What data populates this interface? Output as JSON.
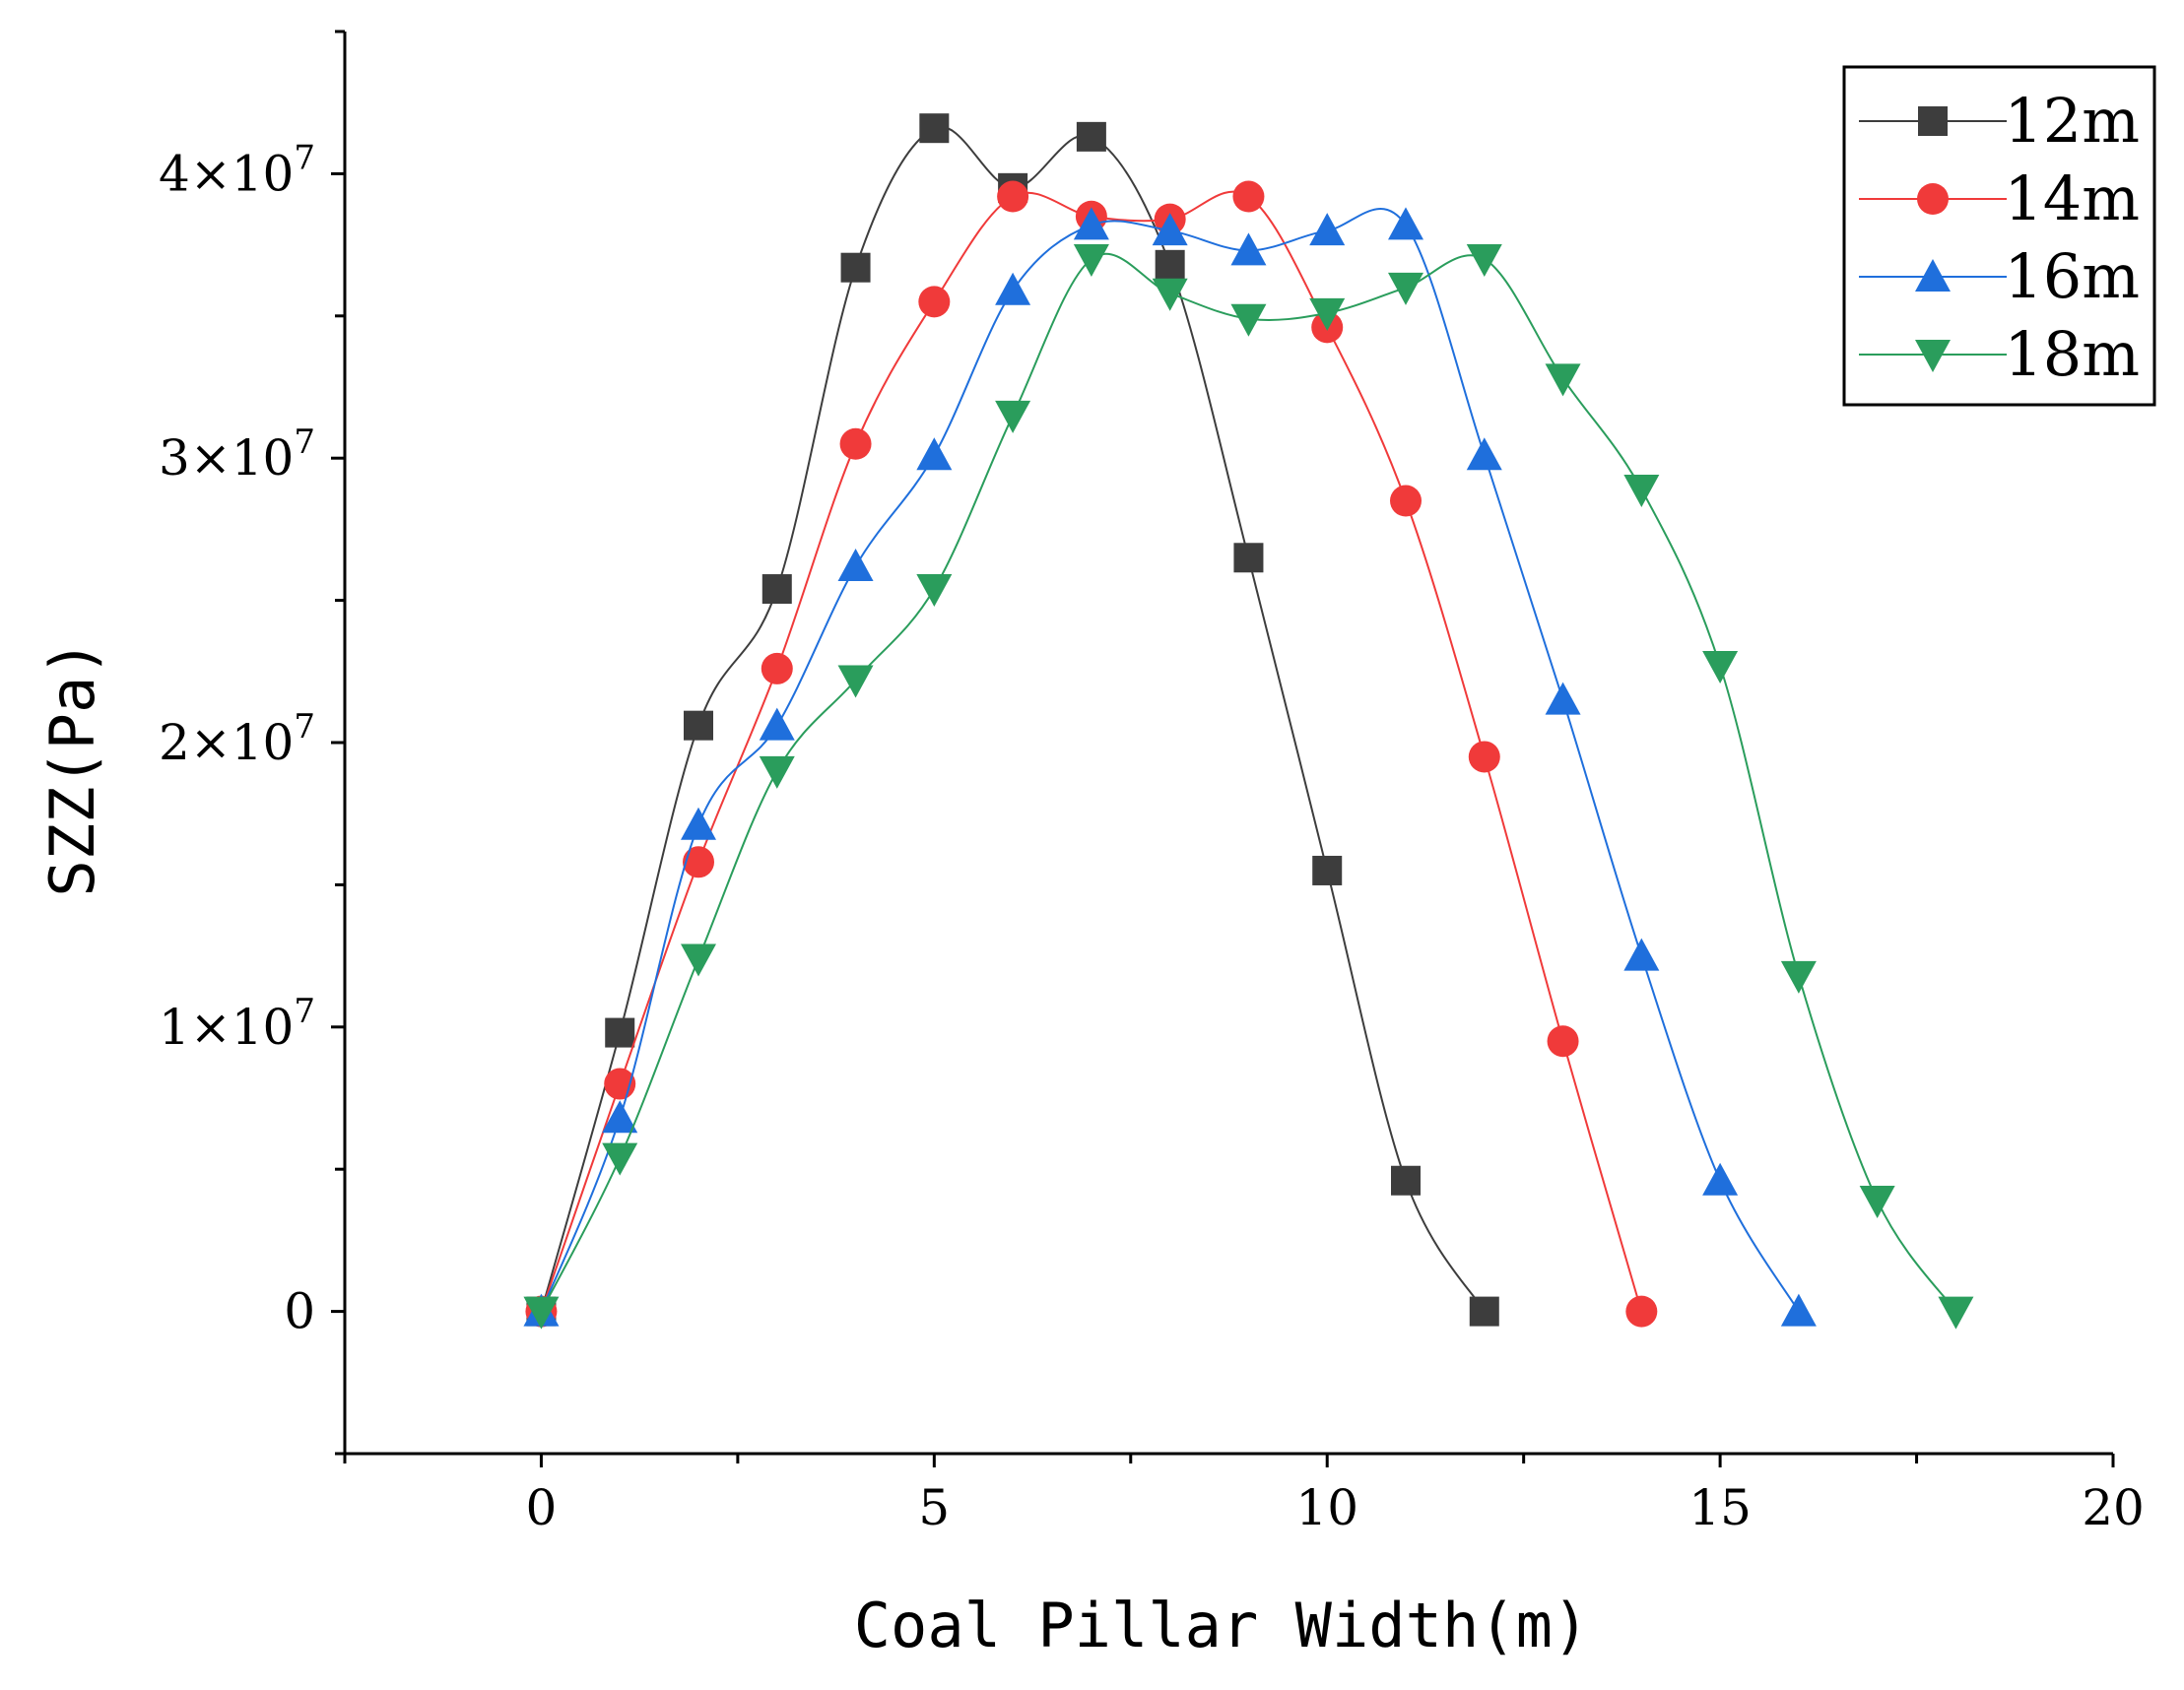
{
  "chart_data": {
    "type": "line",
    "title": "",
    "xlabel": "Coal Pillar Width(m)",
    "ylabel": "SZZ(Pa)",
    "xlim": [
      -2.5,
      20
    ],
    "ylim": [
      -5000000,
      45000000
    ],
    "x_ticks": [
      {
        "value": 0,
        "label": "0"
      },
      {
        "value": 5,
        "label": "5"
      },
      {
        "value": 10,
        "label": "10"
      },
      {
        "value": 15,
        "label": "15"
      },
      {
        "value": 20,
        "label": "20"
      }
    ],
    "y_ticks": [
      {
        "value": 0,
        "mantissa": "0",
        "exponent": ""
      },
      {
        "value": 10000000,
        "mantissa": "1×10",
        "exponent": "7"
      },
      {
        "value": 20000000,
        "mantissa": "2×10",
        "exponent": "7"
      },
      {
        "value": 30000000,
        "mantissa": "3×10",
        "exponent": "7"
      },
      {
        "value": 40000000,
        "mantissa": "4×10",
        "exponent": "7"
      }
    ],
    "legend_position": "top-right",
    "series": [
      {
        "name": "12m",
        "color": "#3d3d3d",
        "marker": "square",
        "x": [
          0,
          1,
          2,
          3,
          4,
          5,
          6,
          7,
          8,
          9,
          10,
          11,
          12
        ],
        "y": [
          0,
          9800000,
          20600000,
          25400000,
          36700000,
          41600000,
          39500000,
          41300000,
          36800000,
          26500000,
          15500000,
          4600000,
          0
        ]
      },
      {
        "name": "14m",
        "color": "#f03a3a",
        "marker": "circle",
        "x": [
          0,
          1,
          2,
          3,
          4,
          5,
          6,
          7,
          8,
          9,
          10,
          11,
          12,
          13,
          14
        ],
        "y": [
          0,
          8000000,
          15800000,
          22600000,
          30500000,
          35500000,
          39200000,
          38500000,
          38400000,
          39200000,
          34600000,
          28500000,
          19500000,
          9500000,
          0
        ]
      },
      {
        "name": "16m",
        "color": "#1f6fdc",
        "marker": "triangle-up",
        "x": [
          0,
          1,
          2,
          3,
          4,
          5,
          6,
          7,
          8,
          9,
          10,
          11,
          12,
          13,
          14,
          15,
          16
        ],
        "y": [
          0,
          6800000,
          17100000,
          20600000,
          26200000,
          30100000,
          35900000,
          38200000,
          38000000,
          37300000,
          38000000,
          38200000,
          30100000,
          21500000,
          12500000,
          4600000,
          0
        ]
      },
      {
        "name": "18m",
        "color": "#2a9d5c",
        "marker": "triangle-down",
        "x": [
          0,
          1,
          2,
          3,
          4,
          5,
          6,
          7,
          8,
          9,
          10,
          11,
          12,
          13,
          14,
          15,
          16,
          17,
          18
        ],
        "y": [
          0,
          5400000,
          12400000,
          19000000,
          22200000,
          25400000,
          31500000,
          37000000,
          35800000,
          34900000,
          35100000,
          36000000,
          37000000,
          32800000,
          28900000,
          22700000,
          11800000,
          3900000,
          0
        ]
      }
    ]
  }
}
